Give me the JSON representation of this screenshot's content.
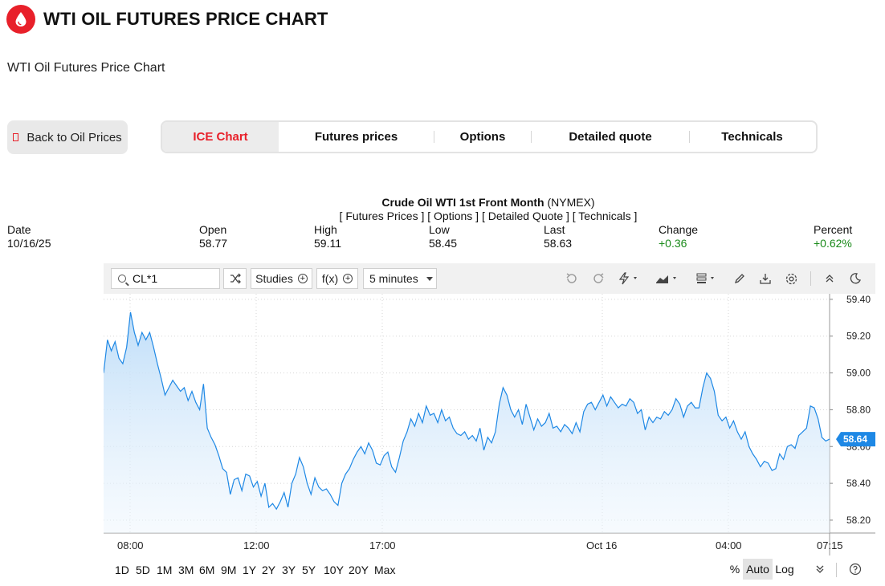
{
  "header": {
    "title": "WTI OIL FUTURES PRICE CHART",
    "subtitle": "WTI Oil Futures Price Chart",
    "logo_icon": "oil-drop-icon",
    "brand_color": "#e8202a"
  },
  "nav": {
    "back_label": "Back to Oil Prices",
    "tabs": [
      {
        "label": "ICE Chart",
        "active": true
      },
      {
        "label": "Futures prices",
        "active": false
      },
      {
        "label": "Options",
        "active": false
      },
      {
        "label": "Detailed quote",
        "active": false
      },
      {
        "label": "Technicals",
        "active": false
      }
    ]
  },
  "quote": {
    "name": "Crude Oil WTI 1st Front Month",
    "exchange": "(NYMEX)",
    "links": "[ Futures Prices ] [ Options ] [ Detailed Quote ] [ Technicals ]",
    "stats": [
      {
        "label": "Date",
        "value": "10/16/25",
        "up": false
      },
      {
        "label": "Open",
        "value": "58.77",
        "up": false
      },
      {
        "label": "High",
        "value": "59.11",
        "up": false
      },
      {
        "label": "Low",
        "value": "58.45",
        "up": false
      },
      {
        "label": "Last",
        "value": "58.63",
        "up": false
      },
      {
        "label": "Change",
        "value": "+0.36",
        "up": true
      },
      {
        "label": "Percent",
        "value": "+0.62%",
        "up": true
      }
    ]
  },
  "toolbar": {
    "symbol": "CL*1",
    "studies_label": "Studies",
    "fx_label": "f(x)",
    "interval_label": "5 minutes",
    "icons": [
      "shuffle-icon",
      "undo-icon",
      "redo-icon",
      "flash-icon",
      "chart-type-icon",
      "layout-icon",
      "pencil-icon",
      "download-icon",
      "settings-icon",
      "collapse-icon",
      "dark-mode-icon"
    ]
  },
  "bottom": {
    "ranges": [
      "1D",
      "5D",
      "1M",
      "3M",
      "6M",
      "9M",
      "1Y",
      "2Y",
      "3Y",
      "5Y",
      "10Y",
      "20Y",
      "Max"
    ],
    "scale_percent": "%",
    "scale_auto": "Auto",
    "scale_log": "Log"
  },
  "chart_data": {
    "type": "area",
    "title": "",
    "xlabel": "",
    "ylabel": "",
    "ylim": [
      58.13,
      59.43
    ],
    "y_ticks": [
      "59.40",
      "59.20",
      "59.00",
      "58.80",
      "58.60",
      "58.40",
      "58.20"
    ],
    "x_ticks": [
      "08:00",
      "12:00",
      "17:00",
      "Oct 16",
      "04:00",
      "07:15"
    ],
    "last_price_label": "58.64",
    "grid": true,
    "line_color": "#1e88e5",
    "series": [
      {
        "values": [
          59.0,
          59.18,
          59.12,
          59.17,
          59.08,
          59.05,
          59.14,
          59.33,
          59.22,
          59.15,
          59.22,
          59.18,
          59.22,
          59.14,
          59.05,
          58.97,
          58.88,
          58.92,
          58.96,
          58.93,
          58.9,
          58.92,
          58.85,
          58.9,
          58.84,
          58.8,
          58.94,
          58.7,
          58.65,
          58.61,
          58.55,
          58.48,
          58.46,
          58.34,
          58.42,
          58.43,
          58.36,
          58.45,
          58.44,
          58.38,
          58.41,
          58.33,
          58.4,
          58.27,
          58.29,
          58.26,
          58.3,
          58.35,
          58.27,
          58.4,
          58.45,
          58.54,
          58.49,
          58.4,
          58.34,
          58.43,
          58.38,
          58.36,
          58.37,
          58.34,
          58.3,
          58.28,
          58.4,
          58.45,
          58.48,
          58.53,
          58.57,
          58.6,
          58.56,
          58.62,
          58.58,
          58.51,
          58.5,
          58.55,
          58.57,
          58.49,
          58.46,
          58.54,
          58.63,
          58.68,
          58.75,
          58.71,
          58.78,
          58.73,
          58.82,
          58.77,
          58.78,
          58.73,
          58.8,
          58.74,
          58.76,
          58.7,
          58.67,
          58.66,
          58.68,
          58.64,
          58.66,
          58.63,
          58.7,
          58.58,
          58.65,
          58.62,
          58.68,
          58.83,
          58.92,
          58.88,
          58.8,
          58.76,
          58.8,
          58.72,
          58.83,
          58.76,
          58.69,
          58.75,
          58.71,
          58.73,
          58.78,
          58.7,
          58.71,
          58.68,
          58.72,
          58.7,
          58.67,
          58.73,
          58.68,
          58.79,
          58.83,
          58.84,
          58.8,
          58.84,
          58.88,
          58.82,
          58.87,
          58.84,
          58.81,
          58.83,
          58.82,
          58.86,
          58.84,
          58.78,
          58.8,
          58.69,
          58.76,
          58.73,
          58.76,
          58.75,
          58.79,
          58.77,
          58.8,
          58.86,
          58.83,
          58.76,
          58.82,
          58.84,
          58.81,
          58.81,
          58.92,
          59.0,
          58.97,
          58.9,
          58.77,
          58.74,
          58.76,
          58.7,
          58.74,
          58.68,
          58.64,
          58.68,
          58.6,
          58.56,
          58.53,
          58.49,
          58.52,
          58.51,
          58.47,
          58.48,
          58.56,
          58.53,
          58.6,
          58.61,
          58.59,
          58.66,
          58.68,
          58.7,
          58.82,
          58.81,
          58.75,
          58.65,
          58.63,
          58.64
        ]
      }
    ]
  }
}
